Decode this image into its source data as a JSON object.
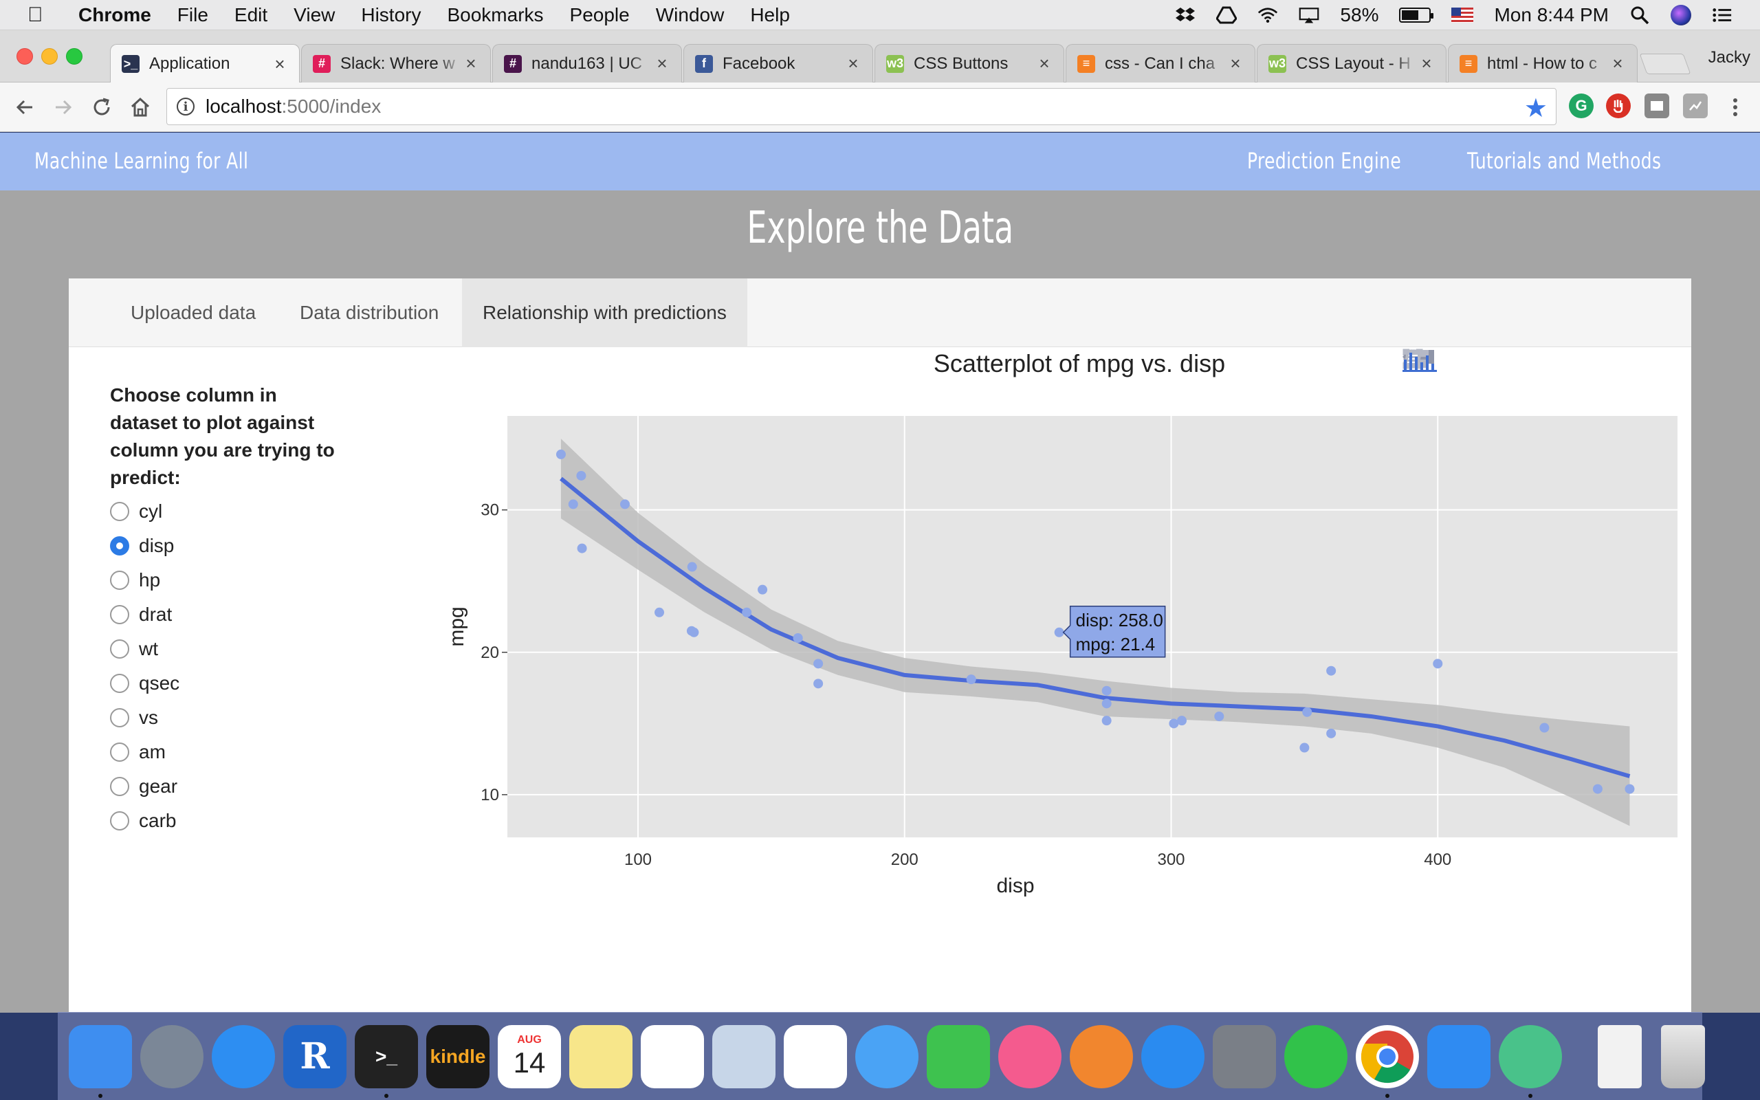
{
  "menubar": {
    "app_name": "Chrome",
    "items": [
      "File",
      "Edit",
      "View",
      "History",
      "Bookmarks",
      "People",
      "Window",
      "Help"
    ],
    "battery": "58%",
    "clock": "Mon 8:44 PM"
  },
  "browser": {
    "tabs": [
      {
        "title": "Application",
        "favicon_color": "#2a3450",
        "favicon_glyph": ">_"
      },
      {
        "title": "Slack: Where w",
        "favicon_color": "#e01e5a",
        "favicon_glyph": "#"
      },
      {
        "title": "nandu163 | UC",
        "favicon_color": "#4a154b",
        "favicon_glyph": "#"
      },
      {
        "title": "Facebook",
        "favicon_color": "#3b5998",
        "favicon_glyph": "f"
      },
      {
        "title": "CSS Buttons",
        "favicon_color": "#8cc152",
        "favicon_glyph": "w3"
      },
      {
        "title": "css - Can I cha",
        "favicon_color": "#f48024",
        "favicon_glyph": "≡"
      },
      {
        "title": "CSS Layout - H",
        "favicon_color": "#8cc152",
        "favicon_glyph": "w3"
      },
      {
        "title": "html - How to c",
        "favicon_color": "#f48024",
        "favicon_glyph": "≡"
      }
    ],
    "profile_name": "Jacky",
    "url_host": "localhost",
    "url_path": ":5000/index"
  },
  "site": {
    "brand": "Machine Learning for All",
    "nav": [
      "Prediction Engine",
      "Tutorials and Methods"
    ],
    "page_title": "Explore the Data",
    "tabs": [
      "Uploaded data",
      "Data distribution",
      "Relationship with predictions"
    ],
    "active_tab": 2
  },
  "sidebar": {
    "title": "Choose column in dataset to plot against column you are trying to predict:",
    "options": [
      "cyl",
      "disp",
      "hp",
      "drat",
      "wt",
      "qsec",
      "vs",
      "am",
      "gear",
      "carb"
    ],
    "selected": "disp"
  },
  "tooltip": {
    "line1": "disp: 258.0",
    "line2": "mpg: 21.4"
  },
  "chart_data": {
    "type": "scatter",
    "title": "Scatterplot of mpg vs. disp",
    "xlabel": "disp",
    "ylabel": "mpg",
    "xlim": [
      51,
      492
    ],
    "ylim": [
      7,
      36.6
    ],
    "x_ticks": [
      100,
      200,
      300,
      400
    ],
    "y_ticks": [
      10,
      20,
      30
    ],
    "grid": true,
    "points": [
      {
        "x": 71.1,
        "y": 33.9
      },
      {
        "x": 75.7,
        "y": 30.4
      },
      {
        "x": 78.7,
        "y": 32.4
      },
      {
        "x": 79.0,
        "y": 27.3
      },
      {
        "x": 95.1,
        "y": 30.4
      },
      {
        "x": 108.0,
        "y": 22.8
      },
      {
        "x": 120.1,
        "y": 21.5
      },
      {
        "x": 120.3,
        "y": 26.0
      },
      {
        "x": 121.0,
        "y": 21.4
      },
      {
        "x": 140.8,
        "y": 22.8
      },
      {
        "x": 146.7,
        "y": 24.4
      },
      {
        "x": 160.0,
        "y": 21.0
      },
      {
        "x": 160.0,
        "y": 21.0
      },
      {
        "x": 167.6,
        "y": 19.2
      },
      {
        "x": 167.6,
        "y": 17.8
      },
      {
        "x": 225.0,
        "y": 18.1
      },
      {
        "x": 258.0,
        "y": 21.4
      },
      {
        "x": 275.8,
        "y": 16.4
      },
      {
        "x": 275.8,
        "y": 17.3
      },
      {
        "x": 275.8,
        "y": 15.2
      },
      {
        "x": 301.0,
        "y": 15.0
      },
      {
        "x": 304.0,
        "y": 15.2
      },
      {
        "x": 318.0,
        "y": 15.5
      },
      {
        "x": 350.0,
        "y": 13.3
      },
      {
        "x": 351.0,
        "y": 15.8
      },
      {
        "x": 360.0,
        "y": 18.7
      },
      {
        "x": 360.0,
        "y": 14.3
      },
      {
        "x": 400.0,
        "y": 19.2
      },
      {
        "x": 440.0,
        "y": 14.7
      },
      {
        "x": 460.0,
        "y": 10.4
      },
      {
        "x": 472.0,
        "y": 10.4
      }
    ],
    "smooth_line": [
      {
        "x": 71.1,
        "y": 32.2
      },
      {
        "x": 100,
        "y": 27.8
      },
      {
        "x": 125,
        "y": 24.5
      },
      {
        "x": 150,
        "y": 21.6
      },
      {
        "x": 175,
        "y": 19.6
      },
      {
        "x": 200,
        "y": 18.4
      },
      {
        "x": 225,
        "y": 18.0
      },
      {
        "x": 250,
        "y": 17.7
      },
      {
        "x": 275,
        "y": 16.8
      },
      {
        "x": 300,
        "y": 16.4
      },
      {
        "x": 325,
        "y": 16.2
      },
      {
        "x": 350,
        "y": 16.0
      },
      {
        "x": 375,
        "y": 15.5
      },
      {
        "x": 400,
        "y": 14.8
      },
      {
        "x": 425,
        "y": 13.8
      },
      {
        "x": 450,
        "y": 12.5
      },
      {
        "x": 472,
        "y": 11.3
      }
    ],
    "band_upper": [
      35.0,
      29.8,
      26.2,
      23.0,
      20.8,
      19.6,
      19.0,
      18.6,
      18.0,
      17.5,
      17.2,
      17.1,
      16.7,
      16.3,
      15.7,
      15.2,
      14.8
    ],
    "band_lower": [
      29.4,
      25.8,
      22.8,
      20.2,
      18.4,
      17.2,
      16.9,
      16.5,
      15.5,
      15.3,
      15.1,
      14.8,
      14.3,
      13.3,
      11.9,
      9.8,
      7.8
    ],
    "point_color": "#8fa8e8",
    "line_color": "#4c6bd8",
    "band_color": "#bdbdbd",
    "plot_bg": "#e5e5e5"
  },
  "modebar": [
    "camera-icon",
    "zoom-icon",
    "pan-icon",
    "box-select-icon",
    "lasso-icon",
    "zoom-in-icon",
    "zoom-out-icon",
    "autoscale-icon",
    "reset-axes-icon",
    "spike-lines-icon",
    "hover-closest-icon",
    "hover-compare-icon",
    "edit-chart-icon",
    "plotly-logo-icon"
  ],
  "dock": [
    {
      "name": "finder",
      "color": "#3e8ef0",
      "running": true
    },
    {
      "name": "launchpad",
      "color": "#7b8797",
      "running": false
    },
    {
      "name": "safari",
      "color": "#2d8ef2",
      "running": false
    },
    {
      "name": "r",
      "color": "#2166c8",
      "running": false,
      "glyph": "R"
    },
    {
      "name": "terminal",
      "color": "#222222",
      "running": true,
      "glyph": ">_"
    },
    {
      "name": "kindle",
      "color": "#1a1a1a",
      "running": false,
      "glyph": "kindle"
    },
    {
      "name": "calendar",
      "color": "#ffffff",
      "running": false,
      "glyph": "14",
      "month": "AUG"
    },
    {
      "name": "notes",
      "color": "#f7e68a",
      "running": false
    },
    {
      "name": "reminders",
      "color": "#ffffff",
      "running": false
    },
    {
      "name": "preview",
      "color": "#c7d6e8",
      "running": false
    },
    {
      "name": "photos",
      "color": "#ffffff",
      "running": false
    },
    {
      "name": "messages",
      "color": "#4aa3f5",
      "running": false
    },
    {
      "name": "facetime",
      "color": "#3ec24f",
      "running": false
    },
    {
      "name": "itunes",
      "color": "#f45b8e",
      "running": false
    },
    {
      "name": "ibooks",
      "color": "#f1862e",
      "running": false
    },
    {
      "name": "app-store",
      "color": "#2a8bf0",
      "running": false
    },
    {
      "name": "system-preferences",
      "color": "#7a7f87",
      "running": false
    },
    {
      "name": "whatsapp",
      "color": "#31c24a",
      "running": false
    },
    {
      "name": "chrome",
      "color": "#ffffff",
      "running": true
    },
    {
      "name": "dropbox",
      "color": "#2f8bf2",
      "running": false
    },
    {
      "name": "atom",
      "color": "#49c28a",
      "running": true
    }
  ]
}
